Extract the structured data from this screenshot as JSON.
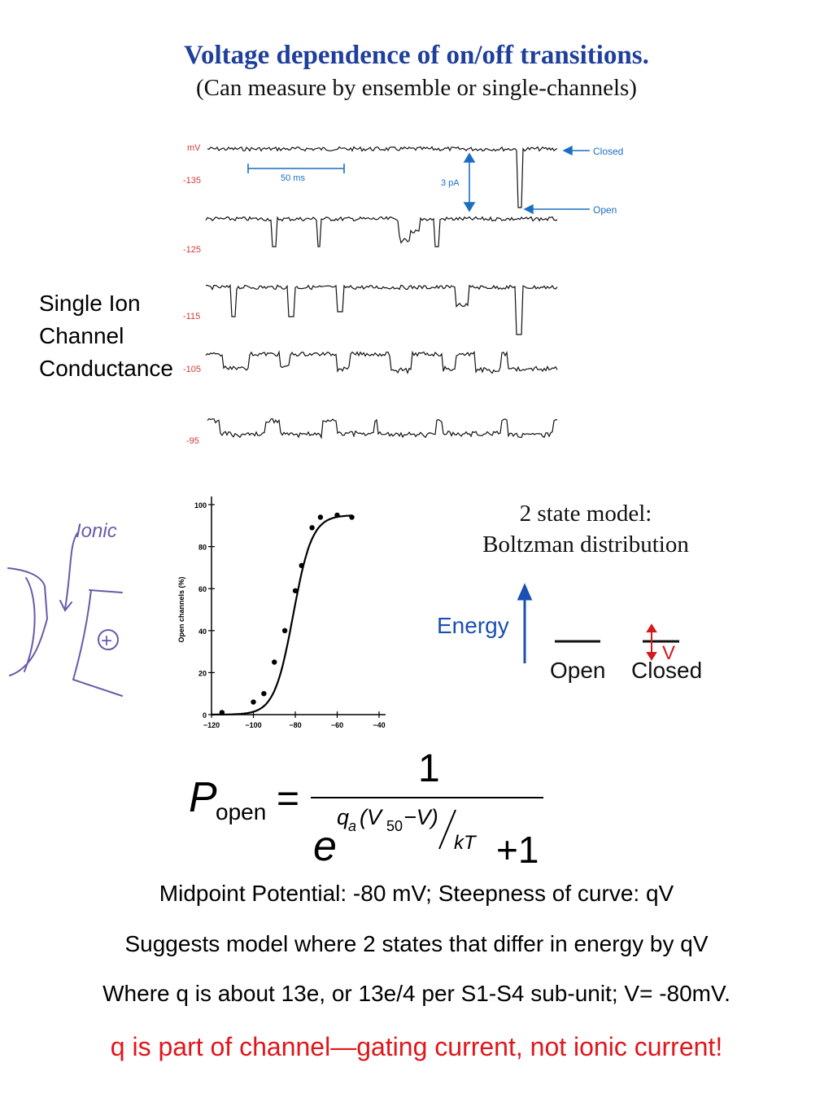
{
  "slide": {
    "title": "Voltage dependence of on/off transitions.",
    "subtitle": "(Can measure by ensemble or single-channels)",
    "side_label": [
      "Single Ion",
      "Channel",
      "Conductance"
    ]
  },
  "traces": {
    "unit_label": "mV",
    "voltages": [
      "-135",
      "-125",
      "-115",
      "-105",
      "-95"
    ],
    "time_scale": "50 ms",
    "current_scale": "3 pA",
    "closed_label": "Closed",
    "open_label": "Open",
    "colors": {
      "labels": "#d23a3a",
      "annotation": "#1a6fc2",
      "trace": "#111111"
    }
  },
  "chart_data": {
    "type": "scatter",
    "title": "",
    "xlabel": "",
    "ylabel": "Open channels (%)",
    "xlim": [
      -120,
      -40
    ],
    "ylim": [
      0,
      100
    ],
    "xticks": [
      "-120",
      "-100",
      "-80",
      "-60",
      "-40"
    ],
    "yticks": [
      "0",
      "20",
      "40",
      "60",
      "80",
      "100"
    ],
    "points": [
      {
        "x": -115,
        "y": 1
      },
      {
        "x": -100,
        "y": 6
      },
      {
        "x": -95,
        "y": 10
      },
      {
        "x": -90,
        "y": 25
      },
      {
        "x": -85,
        "y": 40
      },
      {
        "x": -80,
        "y": 59
      },
      {
        "x": -77,
        "y": 71
      },
      {
        "x": -72,
        "y": 89
      },
      {
        "x": -68,
        "y": 94
      },
      {
        "x": -60,
        "y": 95
      },
      {
        "x": -53,
        "y": 94
      }
    ],
    "curve_midpoint": -81,
    "curve_slope": 4.5,
    "curve_max": 95
  },
  "model": {
    "title_line1": "2 state model:",
    "title_line2": "Boltzman distribution",
    "energy_label": "Energy",
    "open_label": "Open",
    "closed_label": "Closed",
    "v_label": "V",
    "colors": {
      "energy": "#1a4fb3",
      "v_arrow": "#d41a1a"
    }
  },
  "handwriting": {
    "note": "Ionic",
    "plus": "+"
  },
  "equation": {
    "lhs_symbol": "P",
    "lhs_subscript": "open",
    "equals": "=",
    "numerator": "1",
    "base": "e",
    "exp_q": "q",
    "exp_q_sub": "a",
    "exp_paren_open": "(V",
    "exp_v_sub": "50",
    "exp_rest": "−V)",
    "exp_denominator": "kT",
    "plus_one": "+1"
  },
  "body_text": {
    "line1": "Midpoint Potential: -80 mV; Steepness of curve: qV",
    "line2": "Suggests model where 2 states that differ in energy by qV",
    "line3": "Where q is about 13e, or 13e/4 per S1-S4 sub-unit; V= -80mV.",
    "line4": "q is part of channel—gating current, not ionic current!"
  }
}
